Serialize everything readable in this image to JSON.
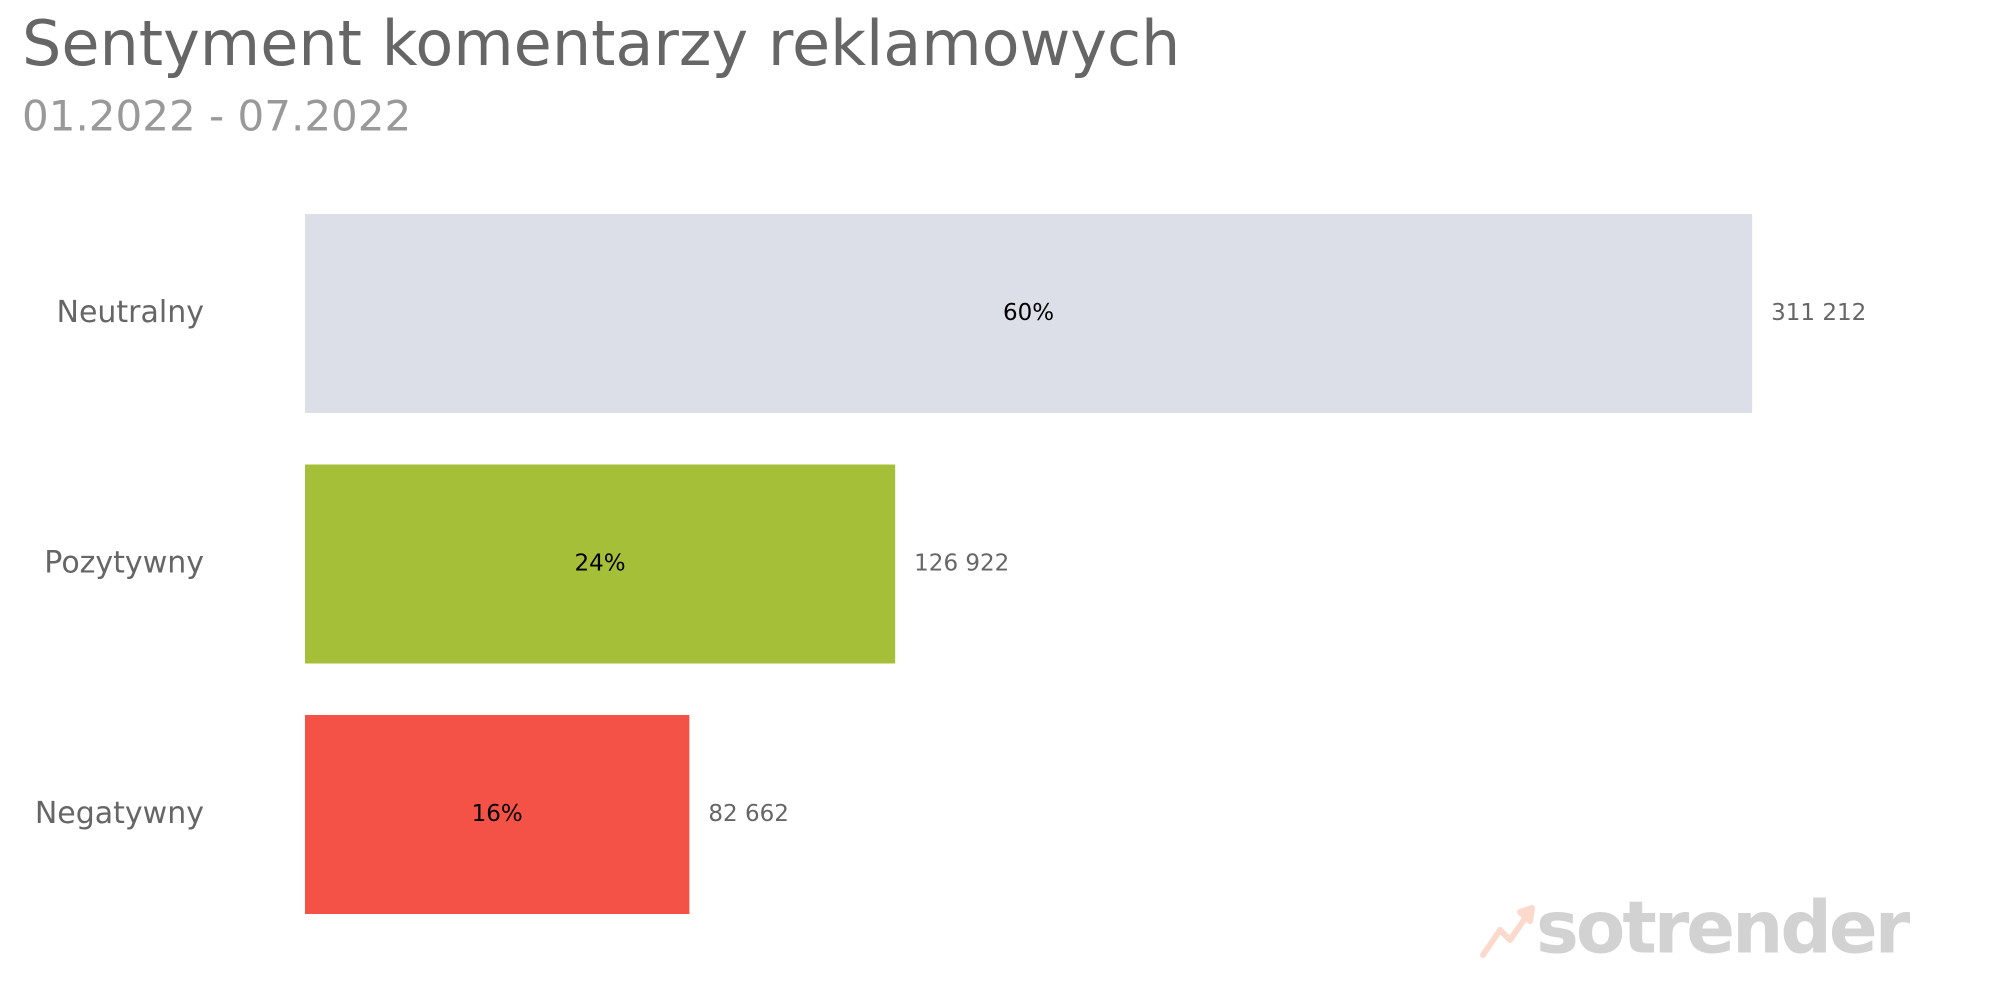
{
  "chart_data": {
    "type": "hbar",
    "title": "Sentyment komentarzy reklamowych",
    "subtitle": "01.2022 - 07.2022",
    "categories": [
      "Neutralny",
      "Pozytywny",
      "Negatywny"
    ],
    "values": [
      311212,
      126922,
      82662
    ],
    "value_labels": [
      "311 212",
      "126 922",
      "82 662"
    ],
    "percentages": [
      60,
      24,
      16
    ],
    "percentage_labels": [
      "60%",
      "24%",
      "16%"
    ],
    "colors": [
      "#dcdfe7",
      "#a5c038",
      "#f55247"
    ],
    "xlim": [
      0,
      340000
    ],
    "logo": "sotrender"
  }
}
